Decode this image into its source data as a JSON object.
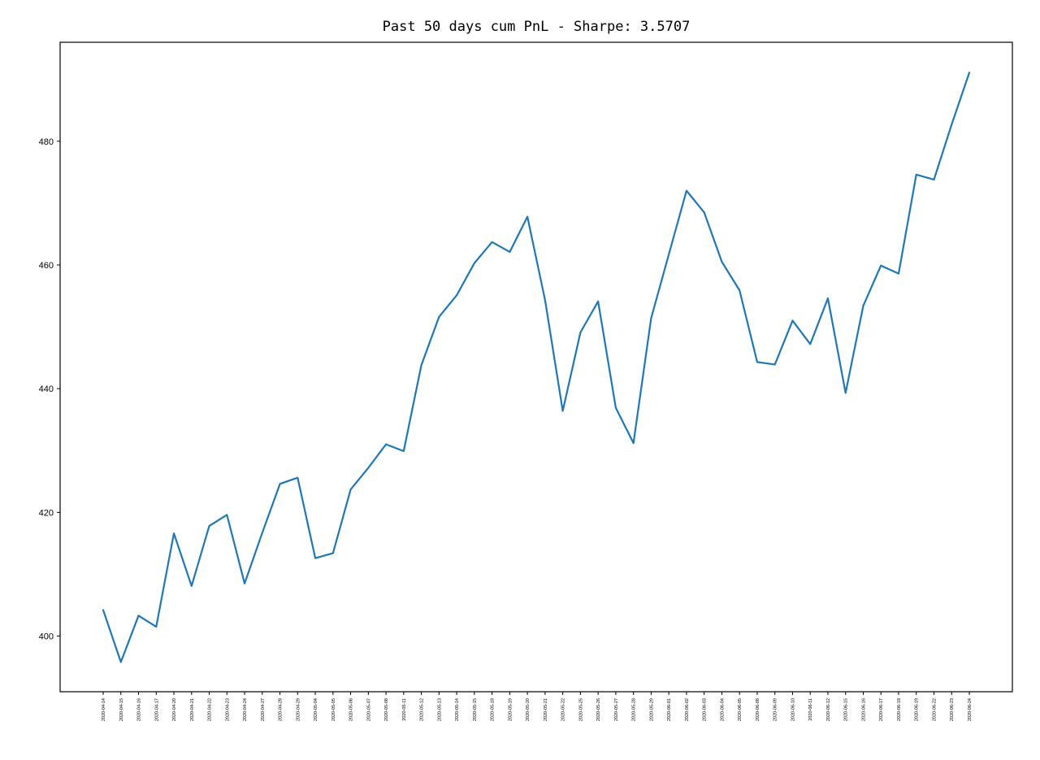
{
  "chart_data": {
    "type": "line",
    "title": "Past 50 days cum PnL - Sharpe: 3.5707",
    "xlabel": "",
    "ylabel": "",
    "ylim": [
      391,
      496
    ],
    "yticks": [
      400,
      420,
      440,
      460,
      480
    ],
    "grid": false,
    "legend": "none",
    "colors": {
      "line": "#1f77b4",
      "axes": "#000000",
      "background": "#ffffff"
    },
    "categories": [
      "2020-04-14",
      "2020-04-15",
      "2020-04-16",
      "2020-04-17",
      "2020-04-20",
      "2020-04-21",
      "2020-04-22",
      "2020-04-23",
      "2020-04-24",
      "2020-04-27",
      "2020-04-28",
      "2020-04-29",
      "2020-05-04",
      "2020-05-05",
      "2020-05-06",
      "2020-05-07",
      "2020-05-08",
      "2020-05-11",
      "2020-05-12",
      "2020-05-13",
      "2020-05-14",
      "2020-05-15",
      "2020-05-18",
      "2020-05-19",
      "2020-05-20",
      "2020-05-21",
      "2020-05-22",
      "2020-05-25",
      "2020-05-26",
      "2020-05-27",
      "2020-05-28",
      "2020-05-29",
      "2020-06-01",
      "2020-06-02",
      "2020-06-03",
      "2020-06-04",
      "2020-06-05",
      "2020-06-08",
      "2020-06-09",
      "2020-06-10",
      "2020-06-11",
      "2020-06-12",
      "2020-06-15",
      "2020-06-16",
      "2020-06-17",
      "2020-06-18",
      "2020-06-19",
      "2020-06-22",
      "2020-06-23",
      "2020-06-24"
    ],
    "series": [
      {
        "values": [
          404.2,
          395.8,
          403.3,
          401.5,
          416.6,
          408.1,
          417.8,
          419.6,
          408.5,
          416.7,
          424.6,
          425.6,
          412.6,
          413.4,
          423.7,
          427.2,
          431.0,
          429.9,
          443.8,
          451.6,
          455.1,
          460.3,
          463.7,
          462.1,
          467.8,
          454.3,
          436.4,
          449.1,
          454.1,
          436.9,
          431.2,
          451.4,
          461.7,
          472.0,
          468.5,
          460.5,
          455.9,
          444.3,
          443.9,
          451.0,
          447.2,
          454.6,
          439.3,
          453.4,
          459.9,
          458.6,
          474.6,
          473.8,
          482.7,
          491.1
        ]
      }
    ]
  }
}
